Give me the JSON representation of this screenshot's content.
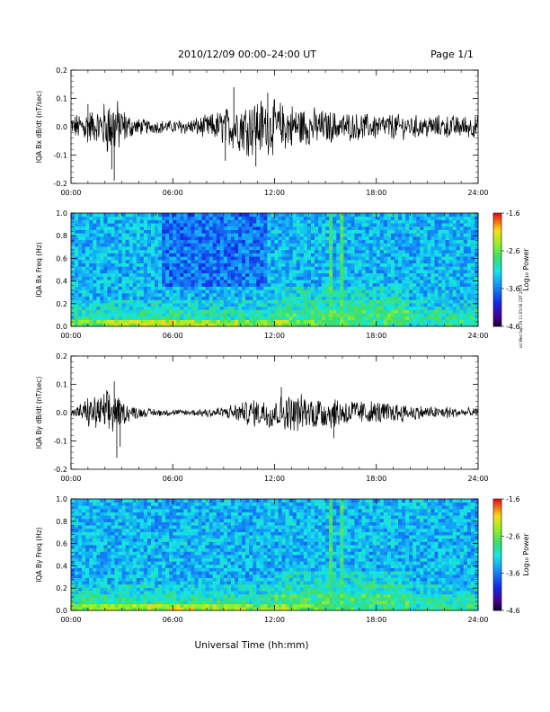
{
  "header": {
    "date_range": "2010/12/09  00:00–24:00 UT",
    "page": "Page 1/1"
  },
  "footer": {
    "xlabel": "Universal Time (hh:mm)",
    "stamp": "ssl Wed Sep 29 11:05:06 CDT 2019"
  },
  "chart_data": [
    {
      "type": "line",
      "id": "bx_dbdt",
      "ylabel": "IQA Bx dB/dt (nT/sec)",
      "xlim": [
        0,
        24
      ],
      "ylim": [
        -0.2,
        0.2
      ],
      "xticks": [
        "00:00",
        "06:00",
        "12:00",
        "18:00",
        "24:00"
      ],
      "yticks": [
        "-0.2",
        "-0.1",
        "0.0",
        "0.1",
        "0.2"
      ],
      "envelope": {
        "x": [
          0,
          0.5,
          1,
          1.5,
          2,
          2.3,
          2.5,
          2.7,
          3,
          3.5,
          4,
          5,
          6,
          7,
          8,
          9,
          10,
          11,
          12,
          13,
          14,
          15,
          16,
          17,
          18,
          19,
          20,
          21,
          22,
          23,
          24
        ],
        "y": [
          0.035,
          0.04,
          0.06,
          0.045,
          0.08,
          0.09,
          0.1,
          0.085,
          0.06,
          0.035,
          0.025,
          0.02,
          0.02,
          0.025,
          0.035,
          0.055,
          0.08,
          0.09,
          0.08,
          0.07,
          0.06,
          0.05,
          0.045,
          0.04,
          0.04,
          0.04,
          0.035,
          0.035,
          0.035,
          0.035,
          0.035
        ]
      },
      "spikes": [
        {
          "x": 2.55,
          "y": -0.19
        },
        {
          "x": 2.4,
          "y": -0.15
        },
        {
          "x": 1.0,
          "y": 0.08
        },
        {
          "x": 9.6,
          "y": 0.14
        },
        {
          "x": 11.6,
          "y": 0.12
        },
        {
          "x": 9.1,
          "y": -0.12
        },
        {
          "x": 10.9,
          "y": -0.14
        }
      ]
    },
    {
      "type": "heatmap",
      "id": "bx_spec",
      "ylabel": "IQA Bx Freq (Hz)",
      "xlim": [
        0,
        24
      ],
      "ylim": [
        0,
        1
      ],
      "xticks": [
        "00:00",
        "06:00",
        "12:00",
        "18:00",
        "24:00"
      ],
      "yticks": [
        "0.0",
        "0.2",
        "0.4",
        "0.6",
        "0.8",
        "1.0"
      ],
      "colorbar": {
        "label": "Log₁₀ Power",
        "ticks": [
          "-1.6",
          "-2.6",
          "-3.6",
          "-4.6"
        ],
        "range": [
          -4.6,
          -1.6
        ]
      },
      "features": {
        "quiet_box": {
          "x": [
            5.3,
            11.5
          ],
          "y": [
            0.35,
            1.0
          ]
        },
        "bands": [
          {
            "x": [
              15.3,
              15.5
            ]
          },
          {
            "x": [
              15.85,
              16.0
            ]
          },
          {
            "x": [
              16.4,
              16.55
            ]
          }
        ]
      }
    },
    {
      "type": "line",
      "id": "by_dbdt",
      "ylabel": "IQA By dB/dt (nT/sec)",
      "xlim": [
        0,
        24
      ],
      "ylim": [
        -0.2,
        0.2
      ],
      "xticks": [
        "00:00",
        "06:00",
        "12:00",
        "18:00",
        "24:00"
      ],
      "yticks": [
        "-0.2",
        "-0.1",
        "0.0",
        "0.1",
        "0.2"
      ],
      "envelope": {
        "x": [
          0,
          0.5,
          1,
          1.5,
          2,
          2.3,
          2.6,
          3,
          3.5,
          4,
          5,
          6,
          7,
          8,
          9,
          10,
          11,
          12,
          13,
          14,
          15,
          16,
          17,
          18,
          19,
          20,
          21,
          22,
          23,
          24
        ],
        "y": [
          0.02,
          0.025,
          0.045,
          0.05,
          0.06,
          0.07,
          0.065,
          0.04,
          0.025,
          0.015,
          0.012,
          0.01,
          0.01,
          0.015,
          0.02,
          0.03,
          0.045,
          0.05,
          0.055,
          0.055,
          0.05,
          0.045,
          0.04,
          0.035,
          0.03,
          0.025,
          0.02,
          0.02,
          0.015,
          0.015
        ]
      },
      "spikes": [
        {
          "x": 2.55,
          "y": 0.11
        },
        {
          "x": 2.7,
          "y": -0.16
        },
        {
          "x": 2.9,
          "y": -0.12
        },
        {
          "x": 12.4,
          "y": 0.09
        },
        {
          "x": 15.5,
          "y": -0.09
        }
      ]
    },
    {
      "type": "heatmap",
      "id": "by_spec",
      "ylabel": "IQA By Freq (Hz)",
      "xlim": [
        0,
        24
      ],
      "ylim": [
        0,
        1
      ],
      "xticks": [
        "00:00",
        "06:00",
        "12:00",
        "18:00",
        "24:00"
      ],
      "yticks": [
        "0.0",
        "0.2",
        "0.4",
        "0.6",
        "0.8",
        "1.0"
      ],
      "colorbar": {
        "label": "Log₁₀ Power",
        "ticks": [
          "-1.6",
          "-2.6",
          "-3.6",
          "-4.6"
        ],
        "range": [
          -4.6,
          -1.6
        ]
      },
      "features": {
        "quiet_box": null,
        "bands": [
          {
            "x": [
              15.3,
              15.5
            ]
          },
          {
            "x": [
              15.8,
              16.0
            ]
          },
          {
            "x": [
              16.45,
              16.6
            ]
          }
        ]
      }
    }
  ]
}
